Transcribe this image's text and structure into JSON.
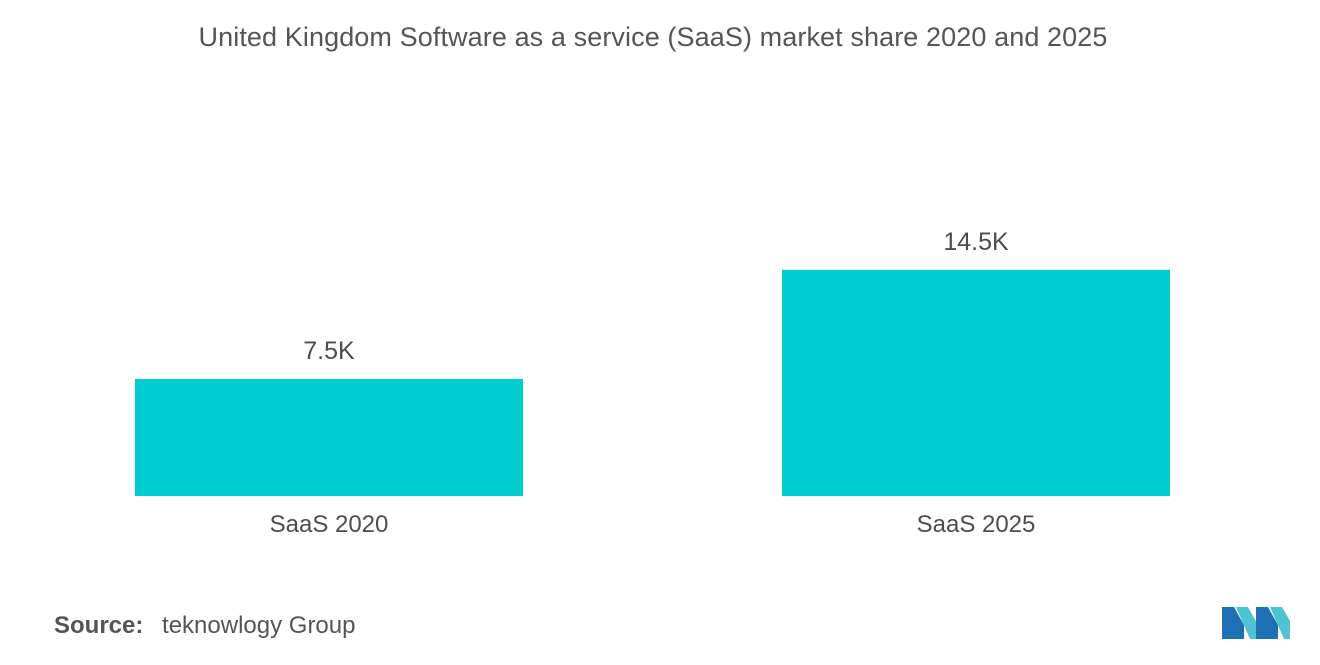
{
  "colors": {
    "bar": "#00ced1",
    "text": "#555555",
    "logo_primary": "#1f77b4",
    "logo_secondary": "#4fc3d3"
  },
  "chart_data": {
    "type": "bar",
    "title": "United Kingdom Software as a service (SaaS) market share 2020 and 2025",
    "categories": [
      "SaaS 2020",
      "SaaS 2025"
    ],
    "values": [
      7.5,
      14.5
    ],
    "value_labels": [
      "7.5K",
      "14.5K"
    ],
    "xlabel": "",
    "ylabel": "",
    "ylim": [
      0,
      20
    ],
    "grid": false,
    "legend": "none"
  },
  "source": {
    "label": "Source:",
    "text": "teknowlogy Group"
  },
  "logo": {
    "icon": "mordor-intelligence-logo-icon"
  }
}
